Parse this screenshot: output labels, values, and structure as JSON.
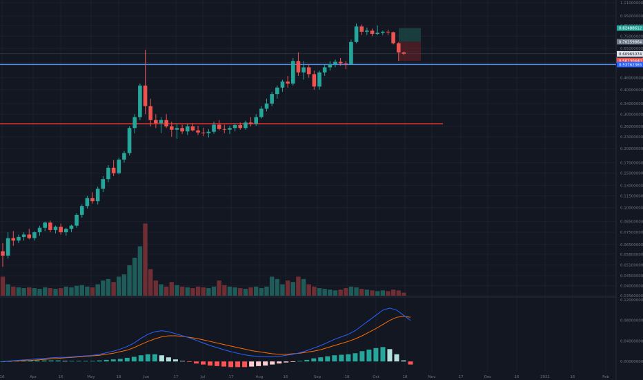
{
  "chart_data": {
    "type": "candlestick",
    "x_labels": [
      "16",
      "Apr",
      "16",
      "May",
      "18",
      "Jun",
      "17",
      "Jul",
      "17",
      "Aug",
      "16",
      "Sep",
      "18",
      "Oct",
      "18",
      "Nov",
      "17",
      "Dec",
      "16",
      "2021",
      "16",
      "Feb"
    ],
    "price_ticks": [
      "1.11000000",
      "0.95000000",
      "0.85000000",
      "0.75000000",
      "0.65000000",
      "0.60965074",
      "0.55000000",
      "0.46000000",
      "0.40000000",
      "0.34000000",
      "0.30000000",
      "0.26000000",
      "0.23000000",
      "0.20000000",
      "0.17000000",
      "0.15000000",
      "0.13000000",
      "0.11500000",
      "0.10000000",
      "0.08500000",
      "0.07500000",
      "0.06500000",
      "0.05800000",
      "0.05100000",
      "0.04500000",
      "0.04000000",
      "0.03560000"
    ],
    "price_log_scale": true,
    "price_range": [
      0.0356,
      1.11
    ],
    "price_tags": {
      "target": "0.82488612",
      "entry": "0.70259864",
      "current": "0.60965074",
      "countdown": "28 15h",
      "stop": "0.56130440",
      "blue_level": "0.53762365"
    },
    "horizontal_lines": [
      {
        "name": "blue-support",
        "value": 0.5376,
        "color": "#4e8ff4"
      },
      {
        "name": "red-support",
        "value": 0.268,
        "color": "#e53935"
      }
    ],
    "candles": [
      [
        0.06,
        0.066,
        0.05,
        0.057
      ],
      [
        0.057,
        0.075,
        0.055,
        0.07
      ],
      [
        0.07,
        0.076,
        0.064,
        0.068
      ],
      [
        0.068,
        0.073,
        0.066,
        0.071
      ],
      [
        0.071,
        0.075,
        0.068,
        0.073
      ],
      [
        0.073,
        0.078,
        0.069,
        0.07
      ],
      [
        0.07,
        0.076,
        0.068,
        0.075
      ],
      [
        0.075,
        0.081,
        0.072,
        0.079
      ],
      [
        0.079,
        0.085,
        0.076,
        0.084
      ],
      [
        0.084,
        0.086,
        0.075,
        0.077
      ],
      [
        0.077,
        0.081,
        0.074,
        0.08
      ],
      [
        0.08,
        0.083,
        0.073,
        0.075
      ],
      [
        0.075,
        0.079,
        0.072,
        0.078
      ],
      [
        0.078,
        0.082,
        0.075,
        0.081
      ],
      [
        0.081,
        0.094,
        0.079,
        0.092
      ],
      [
        0.092,
        0.104,
        0.089,
        0.102
      ],
      [
        0.102,
        0.115,
        0.099,
        0.112
      ],
      [
        0.112,
        0.12,
        0.105,
        0.108
      ],
      [
        0.108,
        0.128,
        0.104,
        0.125
      ],
      [
        0.125,
        0.145,
        0.12,
        0.14
      ],
      [
        0.14,
        0.165,
        0.135,
        0.16
      ],
      [
        0.16,
        0.175,
        0.145,
        0.15
      ],
      [
        0.15,
        0.18,
        0.148,
        0.176
      ],
      [
        0.176,
        0.195,
        0.17,
        0.19
      ],
      [
        0.19,
        0.26,
        0.185,
        0.255
      ],
      [
        0.255,
        0.3,
        0.24,
        0.29
      ],
      [
        0.29,
        0.43,
        0.28,
        0.42
      ],
      [
        0.42,
        0.64,
        0.3,
        0.33
      ],
      [
        0.33,
        0.36,
        0.26,
        0.28
      ],
      [
        0.28,
        0.3,
        0.255,
        0.27
      ],
      [
        0.27,
        0.29,
        0.24,
        0.28
      ],
      [
        0.28,
        0.3,
        0.255,
        0.26
      ],
      [
        0.26,
        0.275,
        0.23,
        0.25
      ],
      [
        0.25,
        0.27,
        0.225,
        0.255
      ],
      [
        0.255,
        0.265,
        0.238,
        0.245
      ],
      [
        0.245,
        0.268,
        0.235,
        0.26
      ],
      [
        0.26,
        0.27,
        0.245,
        0.248
      ],
      [
        0.248,
        0.262,
        0.235,
        0.242
      ],
      [
        0.242,
        0.256,
        0.232,
        0.24
      ],
      [
        0.24,
        0.252,
        0.228,
        0.244
      ],
      [
        0.244,
        0.275,
        0.238,
        0.265
      ],
      [
        0.265,
        0.28,
        0.248,
        0.252
      ],
      [
        0.252,
        0.265,
        0.24,
        0.25
      ],
      [
        0.25,
        0.262,
        0.238,
        0.255
      ],
      [
        0.255,
        0.27,
        0.245,
        0.264
      ],
      [
        0.264,
        0.272,
        0.25,
        0.255
      ],
      [
        0.255,
        0.278,
        0.25,
        0.272
      ],
      [
        0.272,
        0.29,
        0.26,
        0.268
      ],
      [
        0.268,
        0.3,
        0.262,
        0.29
      ],
      [
        0.29,
        0.33,
        0.285,
        0.32
      ],
      [
        0.32,
        0.36,
        0.31,
        0.34
      ],
      [
        0.34,
        0.39,
        0.33,
        0.38
      ],
      [
        0.38,
        0.42,
        0.36,
        0.41
      ],
      [
        0.41,
        0.45,
        0.39,
        0.44
      ],
      [
        0.44,
        0.47,
        0.41,
        0.43
      ],
      [
        0.43,
        0.58,
        0.42,
        0.56
      ],
      [
        0.56,
        0.62,
        0.47,
        0.49
      ],
      [
        0.49,
        0.56,
        0.45,
        0.52
      ],
      [
        0.52,
        0.54,
        0.46,
        0.48
      ],
      [
        0.48,
        0.5,
        0.4,
        0.415
      ],
      [
        0.415,
        0.5,
        0.4,
        0.49
      ],
      [
        0.49,
        0.54,
        0.47,
        0.52
      ],
      [
        0.52,
        0.56,
        0.5,
        0.54
      ],
      [
        0.54,
        0.57,
        0.52,
        0.555
      ],
      [
        0.555,
        0.58,
        0.53,
        0.545
      ],
      [
        0.545,
        0.56,
        0.51,
        0.54
      ],
      [
        0.54,
        0.72,
        0.535,
        0.7
      ],
      [
        0.7,
        0.87,
        0.69,
        0.84
      ],
      [
        0.84,
        0.86,
        0.76,
        0.79
      ],
      [
        0.79,
        0.83,
        0.76,
        0.8
      ],
      [
        0.8,
        0.82,
        0.75,
        0.77
      ],
      [
        0.77,
        0.85,
        0.76,
        0.78
      ],
      [
        0.78,
        0.8,
        0.76,
        0.79
      ],
      [
        0.79,
        0.81,
        0.76,
        0.785
      ],
      [
        0.785,
        0.79,
        0.68,
        0.69
      ],
      [
        0.69,
        0.7,
        0.56,
        0.62
      ],
      [
        0.62,
        0.625,
        0.6,
        0.61
      ]
    ],
    "volume_scale": [
      0.0,
      1.0
    ],
    "volumes": [
      0.25,
      0.15,
      0.12,
      0.11,
      0.1,
      0.11,
      0.1,
      0.09,
      0.11,
      0.1,
      0.09,
      0.1,
      0.12,
      0.11,
      0.13,
      0.14,
      0.12,
      0.11,
      0.15,
      0.2,
      0.22,
      0.18,
      0.25,
      0.28,
      0.4,
      0.5,
      0.65,
      0.95,
      0.35,
      0.2,
      0.15,
      0.12,
      0.18,
      0.14,
      0.12,
      0.11,
      0.1,
      0.12,
      0.11,
      0.1,
      0.12,
      0.2,
      0.14,
      0.12,
      0.11,
      0.1,
      0.09,
      0.11,
      0.12,
      0.1,
      0.12,
      0.25,
      0.22,
      0.15,
      0.2,
      0.18,
      0.25,
      0.22,
      0.15,
      0.12,
      0.1,
      0.09,
      0.08,
      0.07,
      0.08,
      0.1,
      0.12,
      0.11,
      0.09,
      0.08,
      0.07,
      0.06,
      0.07,
      0.06,
      0.08,
      0.07,
      0.04
    ],
    "macd_ticks": [
      "0.12000000",
      "0.08000000",
      "0.04000000",
      "0.00000000"
    ],
    "macd_range": [
      -0.02,
      0.12
    ],
    "macd_line": [
      0.0,
      0.001,
      0.002,
      0.003,
      0.004,
      0.005,
      0.006,
      0.007,
      0.008,
      0.008,
      0.009,
      0.01,
      0.011,
      0.012,
      0.014,
      0.017,
      0.02,
      0.024,
      0.029,
      0.036,
      0.045,
      0.053,
      0.058,
      0.06,
      0.058,
      0.054,
      0.05,
      0.046,
      0.041,
      0.036,
      0.031,
      0.027,
      0.023,
      0.019,
      0.016,
      0.013,
      0.011,
      0.01,
      0.009,
      0.009,
      0.01,
      0.012,
      0.014,
      0.017,
      0.021,
      0.026,
      0.031,
      0.037,
      0.043,
      0.048,
      0.053,
      0.06,
      0.07,
      0.08,
      0.09,
      0.1,
      0.104,
      0.1,
      0.09,
      0.08
    ],
    "signal_line": [
      0.0,
      0.0005,
      0.001,
      0.0015,
      0.002,
      0.003,
      0.004,
      0.005,
      0.006,
      0.007,
      0.008,
      0.009,
      0.01,
      0.011,
      0.012,
      0.014,
      0.016,
      0.019,
      0.022,
      0.027,
      0.033,
      0.039,
      0.044,
      0.048,
      0.05,
      0.05,
      0.049,
      0.047,
      0.045,
      0.042,
      0.039,
      0.036,
      0.033,
      0.03,
      0.027,
      0.024,
      0.021,
      0.019,
      0.017,
      0.015,
      0.014,
      0.014,
      0.015,
      0.016,
      0.018,
      0.02,
      0.023,
      0.027,
      0.031,
      0.035,
      0.039,
      0.044,
      0.05,
      0.057,
      0.064,
      0.072,
      0.08,
      0.086,
      0.088,
      0.086
    ],
    "macd_histogram": [
      0.0,
      0.0005,
      0.001,
      0.0015,
      0.002,
      0.002,
      0.002,
      0.002,
      0.002,
      0.001,
      0.001,
      0.001,
      0.001,
      0.001,
      0.002,
      0.003,
      0.004,
      0.005,
      0.007,
      0.009,
      0.012,
      0.014,
      0.014,
      0.012,
      0.008,
      0.004,
      0.001,
      -0.001,
      -0.004,
      -0.006,
      -0.008,
      -0.009,
      -0.01,
      -0.011,
      -0.011,
      -0.011,
      -0.01,
      -0.009,
      -0.008,
      -0.006,
      -0.004,
      -0.002,
      -0.001,
      0.001,
      0.003,
      0.006,
      0.008,
      0.01,
      0.012,
      0.013,
      0.014,
      0.016,
      0.02,
      0.023,
      0.026,
      0.028,
      0.024,
      0.014,
      0.002,
      -0.006
    ],
    "colors": {
      "up": "#26a69a",
      "down": "#ef5350",
      "vol_up": "#1f5c59",
      "vol_down": "#6e2e33",
      "macd": "#2962ff",
      "signal": "#ff6d00",
      "hist_up_strong": "#26a69a",
      "hist_up_weak": "#b2dfdb",
      "hist_down_strong": "#ff5252",
      "hist_down_weak": "#ffcdd2",
      "tag_target": "#26a69a",
      "tag_entry": "#707a8a",
      "tag_current": "#e0e3eb",
      "tag_stop": "#ef5350",
      "tag_blue": "#2962ff"
    }
  }
}
